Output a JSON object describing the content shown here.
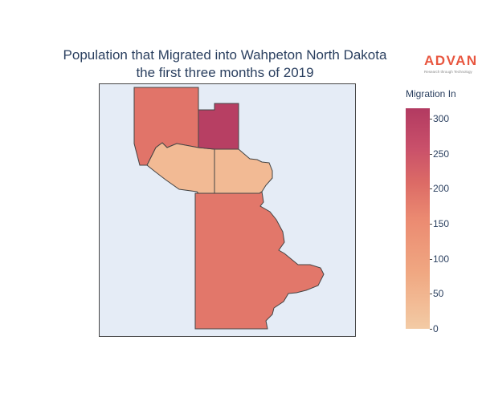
{
  "title": {
    "line1": "Population that Migrated into Wahpeton North Dakota",
    "line2": "the first three months of 2019"
  },
  "logo": {
    "name": "ADVAN",
    "tagline": "Research through Technology"
  },
  "legend": {
    "title": "Migration In",
    "min": 0,
    "max": 315,
    "ticks": [
      0,
      50,
      100,
      150,
      200,
      250,
      300
    ],
    "tick_labels": [
      "0",
      "50",
      "100",
      "150",
      "200",
      "250",
      "300"
    ],
    "colorscale": [
      "#f3cba5",
      "#f0a882",
      "#eb8a71",
      "#dc6b66",
      "#c9506a",
      "#b23a61"
    ]
  },
  "map": {
    "background": "#e5ecf6",
    "border_color": "#444444",
    "regions": [
      {
        "id": "northwest",
        "value": 170
      },
      {
        "id": "north-central",
        "value": 300
      },
      {
        "id": "central-west",
        "value": 30
      },
      {
        "id": "central-east",
        "value": 30
      },
      {
        "id": "south",
        "value": 165
      }
    ]
  }
}
